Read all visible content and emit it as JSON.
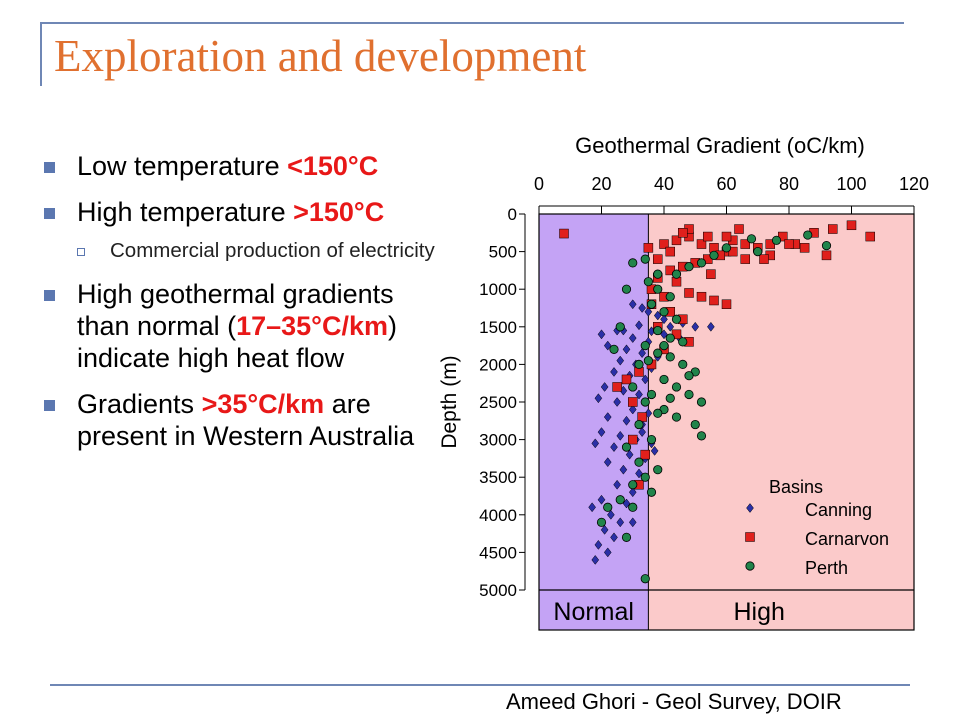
{
  "slide": {
    "title": "Exploration and development",
    "bullets": [
      {
        "pre": "Low temperature ",
        "hl": "<150°C",
        "post": ""
      },
      {
        "pre": "High temperature ",
        "hl": ">150°C",
        "post": ""
      },
      {
        "sub": "Commercial production of electricity"
      },
      {
        "pre": "High geothermal gradients than normal (",
        "hl": "17–35°C/km",
        "post": ") indicate high heat flow"
      },
      {
        "pre": "Gradients ",
        "hl": ">35°C/km",
        "post": " are present in Western Australia"
      }
    ],
    "footer": "Ameed Ghori - Geol Survey, DOIR"
  },
  "colors": {
    "title": "#e0702f",
    "highlight": "#e81818",
    "bullet": "#5b77b0",
    "frame": "#6f87b5",
    "normal_zone": "#c4a3f5",
    "high_zone": "#fbcaca",
    "canning": "#2a2fa6",
    "carnarvon": "#e0201c",
    "perth": "#21844b"
  },
  "chart_data": {
    "type": "scatter",
    "title": "Geothermal Gradient (oC/km)",
    "xlabel": "Geothermal Gradient (oC/km)",
    "ylabel": "Depth (m)",
    "x_axis_position": "top",
    "y_axis_inverted": true,
    "xlim": [
      0,
      120
    ],
    "ylim": [
      0,
      5000
    ],
    "xticks": [
      "0",
      "20",
      "40",
      "60",
      "80",
      "100",
      "120"
    ],
    "yticks": [
      "0",
      "500",
      "1000",
      "1500",
      "2000",
      "2500",
      "3000",
      "3500",
      "4000",
      "4500",
      "5000"
    ],
    "zones": [
      {
        "label": "Normal",
        "from": 0,
        "to": 35
      },
      {
        "label": "High",
        "from": 35,
        "to": 120
      }
    ],
    "legend": {
      "title": "Basins",
      "placement": "bottom-right"
    },
    "series": [
      {
        "name": "Canning",
        "marker": "diamond",
        "points": [
          [
            30,
            1200
          ],
          [
            33,
            1250
          ],
          [
            35,
            1300
          ],
          [
            38,
            1350
          ],
          [
            40,
            1400
          ],
          [
            42,
            1500
          ],
          [
            46,
            1450
          ],
          [
            50,
            1500
          ],
          [
            55,
            1500
          ],
          [
            20,
            1600
          ],
          [
            25,
            1550
          ],
          [
            30,
            1650
          ],
          [
            35,
            1700
          ],
          [
            40,
            1600
          ],
          [
            45,
            1650
          ],
          [
            22,
            1750
          ],
          [
            28,
            1800
          ],
          [
            33,
            1850
          ],
          [
            38,
            1900
          ],
          [
            26,
            1950
          ],
          [
            31,
            2000
          ],
          [
            36,
            2050
          ],
          [
            24,
            2100
          ],
          [
            29,
            2150
          ],
          [
            34,
            2200
          ],
          [
            21,
            2300
          ],
          [
            27,
            2350
          ],
          [
            32,
            2400
          ],
          [
            19,
            2450
          ],
          [
            25,
            2500
          ],
          [
            30,
            2600
          ],
          [
            35,
            2650
          ],
          [
            22,
            2700
          ],
          [
            28,
            2750
          ],
          [
            33,
            2800
          ],
          [
            20,
            2900
          ],
          [
            26,
            2950
          ],
          [
            31,
            3000
          ],
          [
            36,
            3050
          ],
          [
            18,
            3050
          ],
          [
            24,
            3100
          ],
          [
            29,
            3200
          ],
          [
            34,
            3250
          ],
          [
            22,
            3300
          ],
          [
            27,
            3400
          ],
          [
            32,
            3450
          ],
          [
            25,
            3600
          ],
          [
            30,
            3700
          ],
          [
            20,
            3800
          ],
          [
            28,
            3850
          ],
          [
            17,
            3900
          ],
          [
            23,
            4000
          ],
          [
            26,
            4100
          ],
          [
            21,
            4200
          ],
          [
            24,
            4300
          ],
          [
            19,
            4400
          ],
          [
            22,
            4500
          ],
          [
            18,
            4600
          ],
          [
            30,
            4100
          ],
          [
            33,
            2900
          ],
          [
            37,
            3150
          ],
          [
            27,
            1550
          ],
          [
            32,
            1480
          ],
          [
            36,
            1560
          ]
        ]
      },
      {
        "name": "Carnarvon",
        "marker": "square",
        "points": [
          [
            8,
            260
          ],
          [
            35,
            450
          ],
          [
            40,
            400
          ],
          [
            44,
            350
          ],
          [
            48,
            300
          ],
          [
            52,
            400
          ],
          [
            56,
            450
          ],
          [
            60,
            500
          ],
          [
            62,
            350
          ],
          [
            66,
            400
          ],
          [
            70,
            450
          ],
          [
            74,
            400
          ],
          [
            78,
            300
          ],
          [
            82,
            400
          ],
          [
            88,
            250
          ],
          [
            94,
            200
          ],
          [
            100,
            150
          ],
          [
            106,
            300
          ],
          [
            85,
            450
          ],
          [
            74,
            550
          ],
          [
            66,
            600
          ],
          [
            62,
            500
          ],
          [
            58,
            550
          ],
          [
            54,
            600
          ],
          [
            50,
            650
          ],
          [
            46,
            700
          ],
          [
            42,
            750
          ],
          [
            38,
            850
          ],
          [
            44,
            900
          ],
          [
            48,
            1050
          ],
          [
            52,
            1100
          ],
          [
            56,
            1150
          ],
          [
            60,
            1200
          ],
          [
            40,
            1100
          ],
          [
            36,
            1200
          ],
          [
            42,
            1300
          ],
          [
            46,
            1400
          ],
          [
            38,
            1500
          ],
          [
            44,
            1600
          ],
          [
            48,
            1700
          ],
          [
            40,
            1800
          ],
          [
            36,
            2000
          ],
          [
            32,
            2100
          ],
          [
            28,
            2200
          ],
          [
            25,
            2300
          ],
          [
            30,
            2500
          ],
          [
            33,
            2700
          ],
          [
            30,
            3000
          ],
          [
            34,
            3200
          ],
          [
            32,
            3600
          ],
          [
            48,
            200
          ],
          [
            54,
            300
          ],
          [
            46,
            250
          ],
          [
            60,
            300
          ],
          [
            64,
            200
          ],
          [
            72,
            600
          ],
          [
            80,
            400
          ],
          [
            92,
            550
          ],
          [
            55,
            800
          ],
          [
            42,
            500
          ],
          [
            38,
            600
          ],
          [
            36,
            1000
          ]
        ]
      },
      {
        "name": "Perth",
        "marker": "circle",
        "points": [
          [
            68,
            330
          ],
          [
            76,
            350
          ],
          [
            86,
            280
          ],
          [
            92,
            420
          ],
          [
            70,
            500
          ],
          [
            60,
            450
          ],
          [
            56,
            550
          ],
          [
            52,
            650
          ],
          [
            48,
            700
          ],
          [
            44,
            800
          ],
          [
            38,
            800
          ],
          [
            35,
            900
          ],
          [
            38,
            1000
          ],
          [
            42,
            1100
          ],
          [
            36,
            1200
          ],
          [
            40,
            1300
          ],
          [
            44,
            1400
          ],
          [
            38,
            1550
          ],
          [
            42,
            1650
          ],
          [
            46,
            1700
          ],
          [
            34,
            1750
          ],
          [
            38,
            1850
          ],
          [
            42,
            1900
          ],
          [
            46,
            2000
          ],
          [
            50,
            2100
          ],
          [
            40,
            2200
          ],
          [
            44,
            2300
          ],
          [
            48,
            2400
          ],
          [
            52,
            2500
          ],
          [
            36,
            2400
          ],
          [
            40,
            2600
          ],
          [
            44,
            2700
          ],
          [
            50,
            2800
          ],
          [
            52,
            2950
          ],
          [
            30,
            2300
          ],
          [
            34,
            2500
          ],
          [
            38,
            2650
          ],
          [
            32,
            2800
          ],
          [
            36,
            3000
          ],
          [
            28,
            3100
          ],
          [
            32,
            3300
          ],
          [
            38,
            3400
          ],
          [
            34,
            3500
          ],
          [
            30,
            3600
          ],
          [
            36,
            3700
          ],
          [
            26,
            3800
          ],
          [
            22,
            3900
          ],
          [
            20,
            4100
          ],
          [
            28,
            4300
          ],
          [
            32,
            2000
          ],
          [
            35,
            1950
          ],
          [
            42,
            2450
          ],
          [
            48,
            2150
          ],
          [
            30,
            3900
          ],
          [
            34,
            4850
          ],
          [
            30,
            650
          ],
          [
            28,
            1000
          ],
          [
            26,
            1500
          ],
          [
            24,
            1800
          ],
          [
            34,
            600
          ],
          [
            40,
            1750
          ]
        ]
      }
    ]
  }
}
